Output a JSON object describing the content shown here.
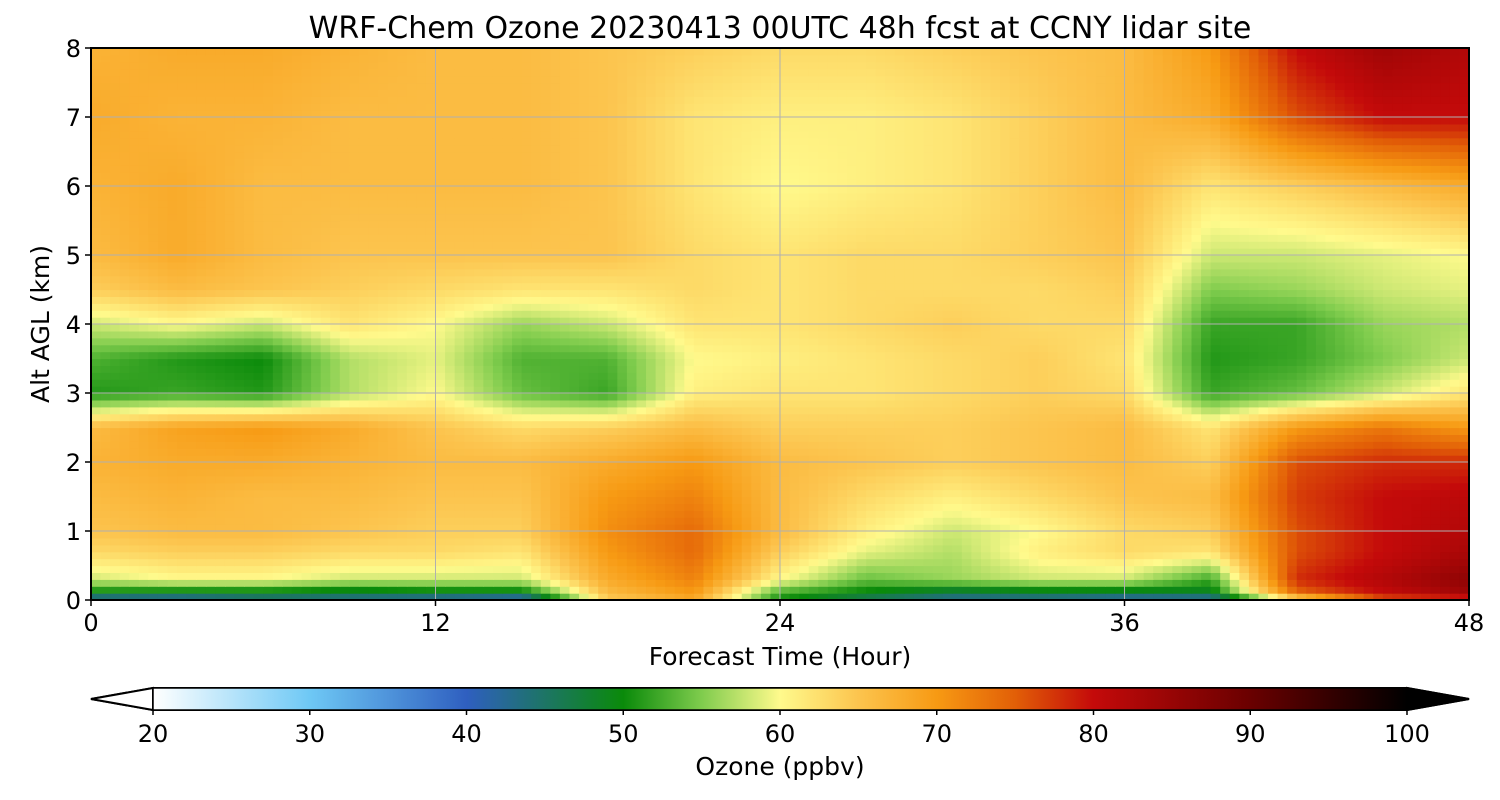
{
  "chart_data": {
    "type": "heatmap",
    "title": "WRF-Chem Ozone  20230413 00UTC 48h fcst at CCNY lidar site",
    "xlabel": "Forecast Time (Hour)",
    "ylabel": "Alt AGL (km)",
    "xlim": [
      0,
      48
    ],
    "ylim": [
      0,
      8
    ],
    "x_ticks": [
      "0",
      "12",
      "24",
      "36",
      "48"
    ],
    "y_ticks": [
      "0",
      "1",
      "2",
      "3",
      "4",
      "5",
      "6",
      "7",
      "8"
    ],
    "grid": true,
    "colorbar": {
      "label": "Ozone  (ppbv)",
      "range": [
        20,
        100
      ],
      "ticks": [
        "20",
        "30",
        "40",
        "50",
        "60",
        "70",
        "80",
        "90",
        "100"
      ],
      "extend": "both",
      "stops": [
        {
          "v": 20,
          "c": "#ffffff"
        },
        {
          "v": 30,
          "c": "#6ec8f5"
        },
        {
          "v": 40,
          "c": "#2f5fc0"
        },
        {
          "v": 50,
          "c": "#0a8a0a"
        },
        {
          "v": 55,
          "c": "#7fcc4d"
        },
        {
          "v": 60,
          "c": "#fffa8c"
        },
        {
          "v": 65,
          "c": "#fcc44e"
        },
        {
          "v": 70,
          "c": "#f79a13"
        },
        {
          "v": 75,
          "c": "#e25f07"
        },
        {
          "v": 80,
          "c": "#c40a0a"
        },
        {
          "v": 90,
          "c": "#6a0000"
        },
        {
          "v": 100,
          "c": "#000000"
        }
      ]
    },
    "x_hours": [
      0,
      3,
      6,
      9,
      12,
      15,
      18,
      21,
      24,
      27,
      30,
      33,
      36,
      39,
      42,
      45,
      48
    ],
    "z_altitudes_km": [
      0,
      0.1,
      0.3,
      0.7,
      1,
      1.5,
      2,
      2.5,
      3,
      3.5,
      4,
      4.5,
      5,
      6,
      7,
      8
    ],
    "ozone_ppbv": [
      [
        40,
        40,
        43,
        42,
        40,
        38,
        64,
        68,
        50,
        45,
        42,
        42,
        40,
        40,
        60,
        75,
        76
      ],
      [
        49,
        48,
        48,
        47,
        48,
        48,
        66,
        70,
        52,
        49,
        46,
        47,
        47,
        48,
        74,
        80,
        84
      ],
      [
        58,
        60,
        60,
        58,
        58,
        58,
        68,
        72,
        60,
        54,
        56,
        58,
        58,
        52,
        78,
        82,
        86
      ],
      [
        63,
        64,
        64,
        63,
        63,
        62,
        70,
        74,
        64,
        59,
        57,
        61,
        63,
        62,
        76,
        80,
        83
      ],
      [
        65,
        66,
        66,
        65,
        64,
        64,
        71,
        74,
        66,
        61,
        58,
        60,
        63,
        64,
        76,
        80,
        82
      ],
      [
        66,
        67,
        66,
        66,
        65,
        65,
        70,
        72,
        66,
        63,
        61,
        63,
        65,
        66,
        77,
        80,
        81
      ],
      [
        67,
        68,
        68,
        67,
        66,
        66,
        68,
        70,
        66,
        65,
        64,
        65,
        66,
        64,
        76,
        78,
        78
      ],
      [
        66,
        69,
        70,
        68,
        65,
        63,
        64,
        66,
        64,
        64,
        64,
        65,
        66,
        62,
        70,
        73,
        70
      ],
      [
        51,
        52,
        51,
        57,
        60,
        54,
        52,
        61,
        62,
        62,
        63,
        64,
        63,
        52,
        54,
        58,
        62
      ],
      [
        53,
        51,
        50,
        57,
        59,
        53,
        53,
        60,
        61,
        62,
        63,
        64,
        62,
        51,
        52,
        55,
        58
      ],
      [
        58,
        60,
        58,
        62,
        60,
        56,
        58,
        62,
        62,
        63,
        64,
        63,
        63,
        52,
        52,
        56,
        57
      ],
      [
        64,
        66,
        65,
        64,
        63,
        62,
        62,
        63,
        62,
        63,
        63,
        63,
        64,
        55,
        56,
        58,
        59
      ],
      [
        66,
        68,
        66,
        65,
        65,
        65,
        65,
        63,
        62,
        63,
        63,
        64,
        65,
        58,
        58,
        59,
        60
      ],
      [
        67,
        68,
        66,
        66,
        66,
        66,
        65,
        62,
        60,
        61,
        62,
        64,
        66,
        62,
        64,
        66,
        68
      ],
      [
        68,
        67,
        67,
        66,
        66,
        66,
        65,
        62,
        61,
        61,
        62,
        64,
        66,
        68,
        76,
        80,
        80
      ],
      [
        67,
        68,
        68,
        67,
        66,
        66,
        65,
        64,
        63,
        63,
        64,
        65,
        66,
        70,
        80,
        84,
        82
      ]
    ]
  }
}
